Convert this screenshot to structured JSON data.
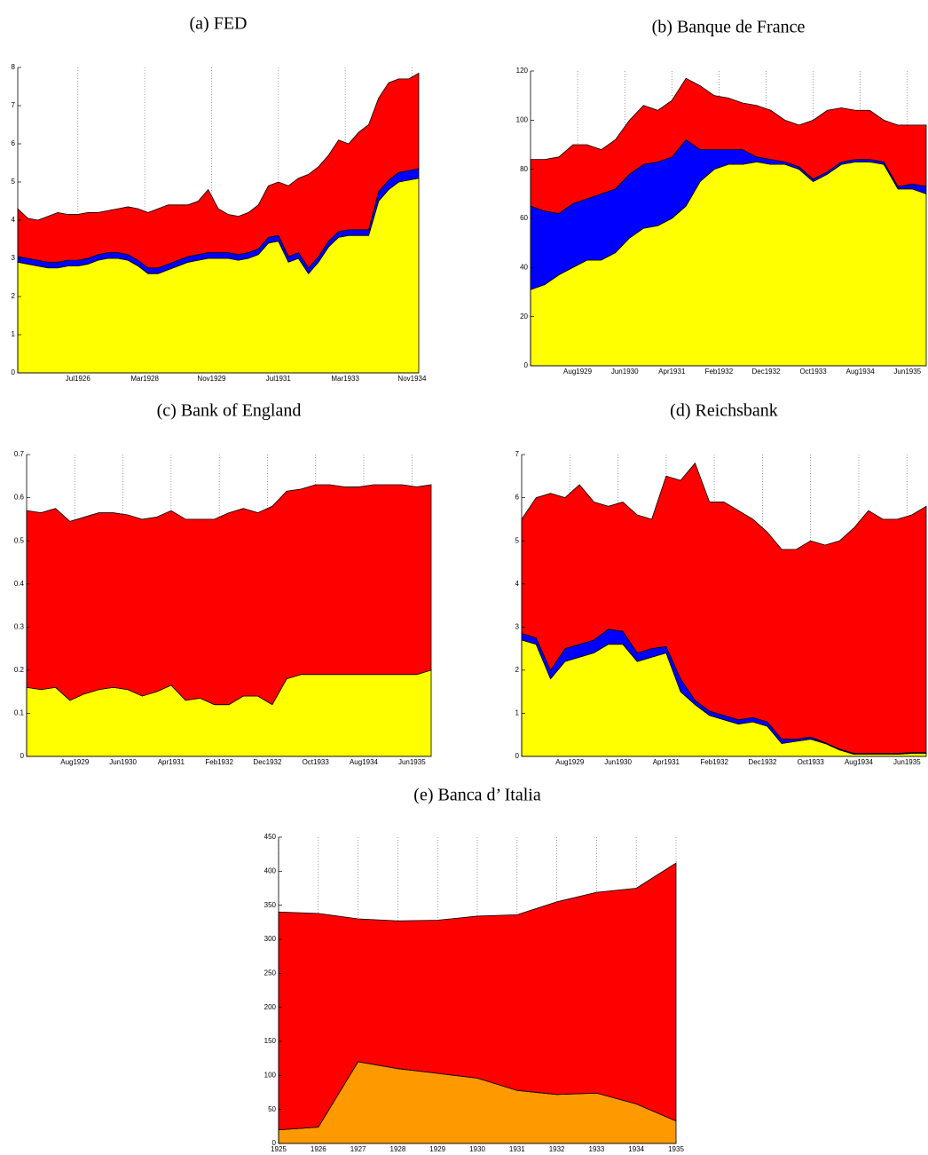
{
  "chart_data": [
    {
      "type": "stacked_area",
      "title": "(a) FED",
      "grid": true,
      "x": [
        1925,
        1925.25,
        1925.5,
        1925.75,
        1926,
        1926.25,
        1926.5,
        1926.75,
        1927,
        1927.25,
        1927.5,
        1927.75,
        1928,
        1928.25,
        1928.5,
        1928.75,
        1929,
        1929.25,
        1929.5,
        1929.75,
        1930,
        1930.25,
        1930.5,
        1930.75,
        1931,
        1931.25,
        1931.5,
        1931.75,
        1932,
        1932.25,
        1932.5,
        1932.75,
        1933,
        1933.25,
        1933.5,
        1933.75,
        1934,
        1934.25,
        1934.5,
        1934.75,
        1935
      ],
      "series": [
        {
          "color": "#ffff00",
          "values": [
            2.9,
            2.85,
            2.8,
            2.75,
            2.75,
            2.8,
            2.8,
            2.85,
            2.95,
            3.0,
            3.0,
            2.95,
            2.8,
            2.6,
            2.6,
            2.7,
            2.8,
            2.9,
            2.95,
            3.0,
            3.0,
            3.0,
            2.95,
            3.0,
            3.1,
            3.4,
            3.45,
            2.9,
            3.0,
            2.6,
            2.9,
            3.3,
            3.55,
            3.6,
            3.6,
            3.6,
            4.5,
            4.8,
            5.0,
            5.05,
            5.1
          ]
        },
        {
          "color": "#0000ff",
          "values": [
            0.15,
            0.15,
            0.15,
            0.15,
            0.15,
            0.15,
            0.15,
            0.15,
            0.15,
            0.15,
            0.15,
            0.15,
            0.15,
            0.15,
            0.15,
            0.15,
            0.15,
            0.15,
            0.15,
            0.15,
            0.15,
            0.15,
            0.15,
            0.15,
            0.15,
            0.15,
            0.15,
            0.15,
            0.15,
            0.15,
            0.15,
            0.15,
            0.15,
            0.15,
            0.15,
            0.15,
            0.25,
            0.25,
            0.25,
            0.25,
            0.25
          ]
        },
        {
          "color": "#ff0000",
          "values": [
            1.25,
            1.05,
            1.05,
            1.2,
            1.3,
            1.2,
            1.2,
            1.2,
            1.1,
            1.1,
            1.15,
            1.25,
            1.35,
            1.45,
            1.55,
            1.55,
            1.45,
            1.35,
            1.4,
            1.65,
            1.15,
            1.0,
            1.0,
            1.05,
            1.15,
            1.35,
            1.4,
            1.85,
            1.95,
            2.45,
            2.35,
            2.25,
            2.4,
            2.25,
            2.55,
            2.75,
            2.45,
            2.55,
            2.45,
            2.4,
            2.5
          ]
        }
      ],
      "xlim": [
        1925,
        1935
      ],
      "ylim": [
        0,
        8
      ],
      "xticks": [
        {
          "value": 1926.5,
          "label": "Jul1926"
        },
        {
          "value": 1928.167,
          "label": "Mar1928"
        },
        {
          "value": 1929.833,
          "label": "Nov1929"
        },
        {
          "value": 1931.5,
          "label": "Jul1931"
        },
        {
          "value": 1933.167,
          "label": "Mar1933"
        },
        {
          "value": 1934.833,
          "label": "Nov1934"
        }
      ],
      "yticks": [
        0,
        1,
        2,
        3,
        4,
        5,
        6,
        7,
        8
      ]
    },
    {
      "type": "stacked_area",
      "title": "(b) Banque de France",
      "grid": true,
      "x": [
        1928.75,
        1929,
        1929.25,
        1929.5,
        1929.75,
        1930,
        1930.25,
        1930.5,
        1930.75,
        1931,
        1931.25,
        1931.5,
        1931.75,
        1932,
        1932.25,
        1932.5,
        1932.75,
        1933,
        1933.25,
        1933.5,
        1933.75,
        1934,
        1934.25,
        1934.5,
        1934.75,
        1935,
        1935.25,
        1935.5,
        1935.75
      ],
      "series": [
        {
          "color": "#ffff00",
          "values": [
            31,
            33,
            37,
            40,
            43,
            43,
            46,
            52,
            56,
            57,
            60,
            65,
            75,
            80,
            82,
            82,
            83,
            82,
            82,
            80,
            75,
            78,
            82,
            83,
            83,
            82,
            72,
            72,
            70
          ]
        },
        {
          "color": "#0000ff",
          "values": [
            34,
            30,
            25,
            26,
            25,
            27,
            26,
            26,
            26,
            26,
            25,
            27,
            13,
            8,
            6,
            6,
            2,
            2,
            1,
            1,
            1,
            1,
            1,
            1,
            1,
            1,
            1,
            2,
            3
          ]
        },
        {
          "color": "#ff0000",
          "values": [
            19,
            21,
            23,
            24,
            22,
            18,
            20,
            22,
            24,
            21,
            23,
            25,
            26,
            22,
            21,
            19,
            21,
            20,
            17,
            17,
            24,
            25,
            22,
            20,
            20,
            17,
            25,
            24,
            25
          ]
        }
      ],
      "xlim": [
        1928.75,
        1935.75
      ],
      "ylim": [
        0,
        120
      ],
      "xticks": [
        {
          "value": 1929.583,
          "label": "Aug1929"
        },
        {
          "value": 1930.417,
          "label": "Jun1930"
        },
        {
          "value": 1931.25,
          "label": "Apr1931"
        },
        {
          "value": 1932.083,
          "label": "Feb1932"
        },
        {
          "value": 1932.917,
          "label": "Dec1932"
        },
        {
          "value": 1933.75,
          "label": "Oct1933"
        },
        {
          "value": 1934.583,
          "label": "Aug1934"
        },
        {
          "value": 1935.417,
          "label": "Jun1935"
        }
      ],
      "yticks": [
        0,
        20,
        40,
        60,
        80,
        100,
        120
      ]
    },
    {
      "type": "stacked_area",
      "title": "(c) Bank of England",
      "grid": true,
      "x": [
        1928.75,
        1929,
        1929.25,
        1929.5,
        1929.75,
        1930,
        1930.25,
        1930.5,
        1930.75,
        1931,
        1931.25,
        1931.5,
        1931.75,
        1932,
        1932.25,
        1932.5,
        1932.75,
        1933,
        1933.25,
        1933.5,
        1933.75,
        1934,
        1934.25,
        1934.5,
        1934.75,
        1935,
        1935.25,
        1935.5,
        1935.75
      ],
      "series": [
        {
          "color": "#ffff00",
          "values": [
            0.16,
            0.155,
            0.16,
            0.13,
            0.145,
            0.155,
            0.16,
            0.155,
            0.14,
            0.15,
            0.165,
            0.13,
            0.135,
            0.12,
            0.12,
            0.14,
            0.14,
            0.12,
            0.18,
            0.19,
            0.19,
            0.19,
            0.19,
            0.19,
            0.19,
            0.19,
            0.19,
            0.19,
            0.2
          ]
        },
        {
          "color": "#ff0000",
          "values": [
            0.41,
            0.41,
            0.415,
            0.415,
            0.41,
            0.41,
            0.405,
            0.405,
            0.41,
            0.405,
            0.405,
            0.42,
            0.415,
            0.43,
            0.445,
            0.435,
            0.425,
            0.46,
            0.435,
            0.43,
            0.44,
            0.44,
            0.435,
            0.435,
            0.44,
            0.44,
            0.44,
            0.435,
            0.43
          ]
        }
      ],
      "xlim": [
        1928.75,
        1935.75
      ],
      "ylim": [
        0,
        0.7
      ],
      "xticks": [
        {
          "value": 1929.583,
          "label": "Aug1929"
        },
        {
          "value": 1930.417,
          "label": "Jun1930"
        },
        {
          "value": 1931.25,
          "label": "Apr1931"
        },
        {
          "value": 1932.083,
          "label": "Feb1932"
        },
        {
          "value": 1932.917,
          "label": "Dec1932"
        },
        {
          "value": 1933.75,
          "label": "Oct1933"
        },
        {
          "value": 1934.583,
          "label": "Aug1934"
        },
        {
          "value": 1935.417,
          "label": "Jun1935"
        }
      ],
      "yticks": [
        0,
        0.1,
        0.2,
        0.3,
        0.4,
        0.5,
        0.6,
        0.7
      ]
    },
    {
      "type": "stacked_area",
      "title": "(d) Reichsbank",
      "grid": true,
      "x": [
        1928.75,
        1929,
        1929.25,
        1929.5,
        1929.75,
        1930,
        1930.25,
        1930.5,
        1930.75,
        1931,
        1931.25,
        1931.5,
        1931.75,
        1932,
        1932.25,
        1932.5,
        1932.75,
        1933,
        1933.25,
        1933.5,
        1933.75,
        1934,
        1934.25,
        1934.5,
        1934.75,
        1935,
        1935.25,
        1935.5,
        1935.75
      ],
      "series": [
        {
          "color": "#ffff00",
          "values": [
            2.7,
            2.6,
            1.8,
            2.2,
            2.3,
            2.4,
            2.6,
            2.6,
            2.2,
            2.3,
            2.4,
            1.5,
            1.2,
            0.95,
            0.85,
            0.75,
            0.8,
            0.7,
            0.3,
            0.35,
            0.4,
            0.3,
            0.15,
            0.05,
            0.05,
            0.05,
            0.05,
            0.07,
            0.07
          ]
        },
        {
          "color": "#0000ff",
          "values": [
            0.15,
            0.15,
            0.2,
            0.3,
            0.3,
            0.3,
            0.35,
            0.3,
            0.2,
            0.2,
            0.15,
            0.3,
            0.1,
            0.1,
            0.1,
            0.1,
            0.1,
            0.1,
            0.1,
            0.05,
            0.05,
            0.02,
            0.02,
            0.02,
            0.02,
            0.02,
            0.02,
            0.02,
            0.02
          ]
        },
        {
          "color": "#ff0000",
          "values": [
            2.65,
            3.25,
            4.1,
            3.5,
            3.7,
            3.2,
            2.85,
            3.0,
            3.2,
            3.0,
            3.95,
            4.6,
            5.5,
            4.85,
            4.95,
            4.85,
            4.6,
            4.4,
            4.4,
            4.4,
            4.55,
            4.58,
            4.83,
            5.23,
            5.63,
            5.43,
            5.43,
            5.51,
            5.71
          ]
        }
      ],
      "xlim": [
        1928.75,
        1935.75
      ],
      "ylim": [
        0,
        7
      ],
      "xticks": [
        {
          "value": 1929.583,
          "label": "Aug1929"
        },
        {
          "value": 1930.417,
          "label": "Jun1930"
        },
        {
          "value": 1931.25,
          "label": "Apr1931"
        },
        {
          "value": 1932.083,
          "label": "Feb1932"
        },
        {
          "value": 1932.917,
          "label": "Dec1932"
        },
        {
          "value": 1933.75,
          "label": "Oct1933"
        },
        {
          "value": 1934.583,
          "label": "Aug1934"
        },
        {
          "value": 1935.417,
          "label": "Jun1935"
        }
      ],
      "yticks": [
        0,
        1,
        2,
        3,
        4,
        5,
        6,
        7
      ]
    },
    {
      "type": "stacked_area",
      "title": "(e) Banca d’ Italia",
      "grid": true,
      "x": [
        1925,
        1926,
        1927,
        1928,
        1929,
        1930,
        1931,
        1932,
        1933,
        1934,
        1935
      ],
      "series": [
        {
          "color": "#ff9900",
          "values": [
            20,
            24,
            120,
            110,
            103,
            96,
            78,
            72,
            74,
            58,
            33
          ]
        },
        {
          "color": "#ff0000",
          "values": [
            320,
            314,
            210,
            217,
            225,
            238,
            258,
            283,
            295,
            317,
            379
          ]
        }
      ],
      "xlim": [
        1925,
        1935
      ],
      "ylim": [
        0,
        450
      ],
      "xticks": [
        1925,
        1926,
        1927,
        1928,
        1929,
        1930,
        1931,
        1932,
        1933,
        1934,
        1935
      ],
      "yticks": [
        0,
        50,
        100,
        150,
        200,
        250,
        300,
        350,
        400,
        450
      ]
    }
  ]
}
